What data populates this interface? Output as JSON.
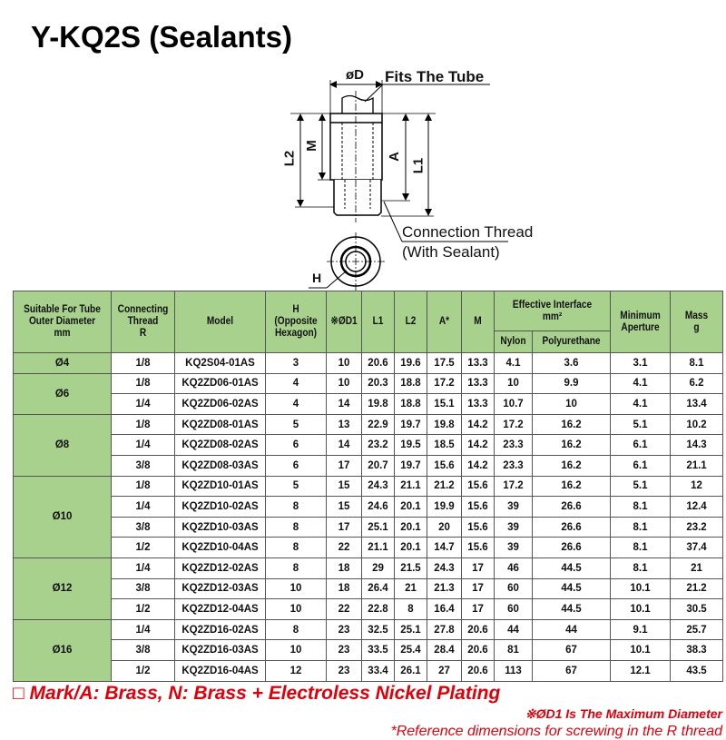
{
  "title": "Y-KQ2S (Sealants)",
  "drawing": {
    "od_label": "øD",
    "fits_tube": "Fits The Tube",
    "m_label": "M",
    "l2_label": "L2",
    "a_label": "A",
    "l1_label": "L1",
    "h_label": "H",
    "connection_thread": "Connection Thread",
    "with_sealant": "(With Sealant)"
  },
  "table": {
    "headers": {
      "tube": [
        "Suitable For Tube",
        "Outer Diameter",
        "mm"
      ],
      "thread": [
        "Connecting",
        "Thread",
        "R"
      ],
      "model": "Model",
      "h": [
        "H",
        "(Opposite",
        "Hexagon)"
      ],
      "d1": "※ØD1",
      "l1": "L1",
      "l2": "L2",
      "a": "A*",
      "m": "M",
      "eff": [
        "Effective Interface",
        "mm²"
      ],
      "nylon": "Nylon",
      "pu": "Polyurethane",
      "aperture": [
        "Minimum",
        "Aperture"
      ],
      "mass": [
        "Mass",
        "g"
      ]
    },
    "groups": [
      {
        "tube": "Ø4",
        "rows": [
          [
            "1/8",
            "KQ2S04-01AS",
            "3",
            "10",
            "20.6",
            "19.6",
            "17.5",
            "13.3",
            "4.1",
            "3.6",
            "3.1",
            "8.1"
          ]
        ]
      },
      {
        "tube": "Ø6",
        "rows": [
          [
            "1/8",
            "KQ2ZD06-01AS",
            "4",
            "10",
            "20.3",
            "18.8",
            "17.2",
            "13.3",
            "10",
            "9.9",
            "4.1",
            "6.2"
          ],
          [
            "1/4",
            "KQ2ZD06-02AS",
            "4",
            "14",
            "19.8",
            "18.8",
            "15.1",
            "13.3",
            "10.7",
            "10",
            "4.1",
            "13.4"
          ]
        ]
      },
      {
        "tube": "Ø8",
        "rows": [
          [
            "1/8",
            "KQ2ZD08-01AS",
            "5",
            "13",
            "22.9",
            "19.7",
            "19.8",
            "14.2",
            "17.2",
            "16.2",
            "5.1",
            "10.2"
          ],
          [
            "1/4",
            "KQ2ZD08-02AS",
            "6",
            "14",
            "23.2",
            "19.5",
            "18.5",
            "14.2",
            "23.3",
            "16.2",
            "6.1",
            "14.3"
          ],
          [
            "3/8",
            "KQ2ZD08-03AS",
            "6",
            "17",
            "20.7",
            "19.7",
            "15.6",
            "14.2",
            "23.3",
            "16.2",
            "6.1",
            "21.1"
          ]
        ]
      },
      {
        "tube": "Ø10",
        "rows": [
          [
            "1/8",
            "KQ2ZD10-01AS",
            "5",
            "15",
            "24.3",
            "21.1",
            "21.2",
            "15.6",
            "17.2",
            "16.2",
            "5.1",
            "12"
          ],
          [
            "1/4",
            "KQ2ZD10-02AS",
            "8",
            "15",
            "24.6",
            "20.1",
            "19.9",
            "15.6",
            "39",
            "26.6",
            "8.1",
            "12.4"
          ],
          [
            "3/8",
            "KQ2ZD10-03AS",
            "8",
            "17",
            "25.1",
            "20.1",
            "20",
            "15.6",
            "39",
            "26.6",
            "8.1",
            "23.2"
          ],
          [
            "1/2",
            "KQ2ZD10-04AS",
            "8",
            "22",
            "21.1",
            "20.1",
            "14.7",
            "15.6",
            "39",
            "26.6",
            "8.1",
            "37.4"
          ]
        ]
      },
      {
        "tube": "Ø12",
        "rows": [
          [
            "1/4",
            "KQ2ZD12-02AS",
            "8",
            "18",
            "29",
            "21.5",
            "24.3",
            "17",
            "46",
            "44.5",
            "8.1",
            "21"
          ],
          [
            "3/8",
            "KQ2ZD12-03AS",
            "10",
            "18",
            "26.4",
            "21",
            "21.3",
            "17",
            "60",
            "44.5",
            "10.1",
            "21.2"
          ],
          [
            "1/2",
            "KQ2ZD12-04AS",
            "10",
            "22",
            "22.8",
            "8",
            "16.4",
            "17",
            "60",
            "44.5",
            "10.1",
            "30.5"
          ]
        ]
      },
      {
        "tube": "Ø16",
        "rows": [
          [
            "1/4",
            "KQ2ZD16-02AS",
            "8",
            "23",
            "32.5",
            "25.1",
            "27.8",
            "20.6",
            "44",
            "44",
            "9.1",
            "25.7"
          ],
          [
            "3/8",
            "KQ2ZD16-03AS",
            "10",
            "23",
            "33.5",
            "25.4",
            "28.4",
            "20.6",
            "81",
            "67",
            "10.1",
            "38.3"
          ],
          [
            "1/2",
            "KQ2ZD16-04AS",
            "12",
            "23",
            "33.4",
            "26.1",
            "27",
            "20.6",
            "113",
            "67",
            "12.1",
            "43.5"
          ]
        ]
      }
    ]
  },
  "notes": {
    "mark": "□ Mark/A: Brass, N: Brass + Electroless Nickel Plating",
    "d1": "※ØD1 Is The Maximum Diameter",
    "ref": "*Reference dimensions for screwing in the R thread"
  },
  "colors": {
    "header_green": "#a9d18e",
    "note_red": "#e0000b"
  }
}
